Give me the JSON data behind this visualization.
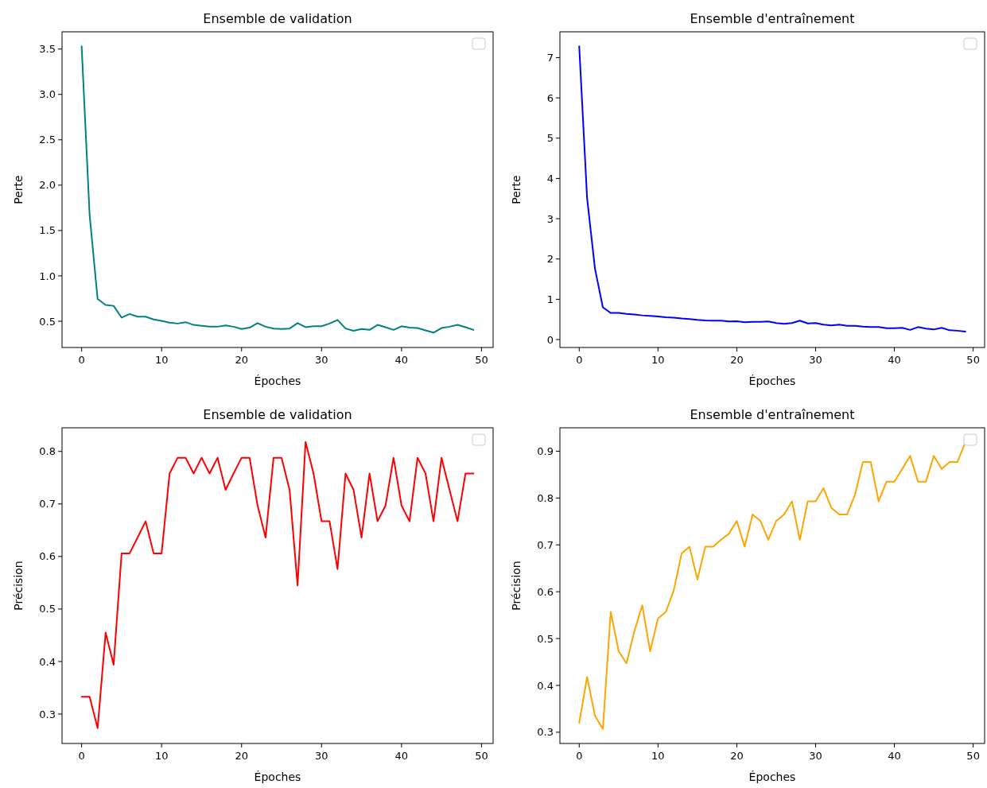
{
  "chart_data": [
    {
      "type": "line",
      "title": "Ensemble de validation",
      "xlabel": "Époches",
      "ylabel": "Perte",
      "xlim": [
        -2.45,
        51.45
      ],
      "xticks": [
        0,
        10,
        20,
        30,
        40,
        50
      ],
      "ylim": [
        0.211,
        3.69
      ],
      "yticks": [
        0.5,
        {
          "value": 1,
          "label": "1.0"
        },
        1.5,
        {
          "value": 2,
          "label": "2.0"
        },
        2.5,
        {
          "value": 3,
          "label": "3.0"
        },
        3.5
      ],
      "series": [
        {
          "color": "#008080",
          "x": [
            0,
            1,
            2,
            3,
            4,
            5,
            6,
            7,
            8,
            9,
            10,
            11,
            12,
            13,
            14,
            15,
            16,
            17,
            18,
            19,
            20,
            21,
            22,
            23,
            24,
            25,
            26,
            27,
            28,
            29,
            30,
            31,
            32,
            33,
            34,
            35,
            36,
            37,
            38,
            39,
            40,
            41,
            42,
            43,
            44,
            45,
            46,
            47,
            48,
            49
          ],
          "values": [
            3.53,
            1.67,
            0.745,
            0.68,
            0.67,
            0.54,
            0.58,
            0.55,
            0.55,
            0.52,
            0.505,
            0.485,
            0.475,
            0.49,
            0.46,
            0.45,
            0.44,
            0.44,
            0.455,
            0.44,
            0.415,
            0.43,
            0.48,
            0.44,
            0.42,
            0.415,
            0.42,
            0.48,
            0.435,
            0.445,
            0.445,
            0.475,
            0.515,
            0.42,
            0.395,
            0.415,
            0.405,
            0.46,
            0.435,
            0.405,
            0.445,
            0.43,
            0.425,
            0.4,
            0.375,
            0.425,
            0.44,
            0.46,
            0.435,
            0.405
          ]
        }
      ]
    },
    {
      "type": "line",
      "title": "Ensemble d'entraînement",
      "xlabel": "Époches",
      "ylabel": "Perte",
      "xlim": [
        -2.45,
        51.45
      ],
      "xticks": [
        0,
        10,
        20,
        30,
        40,
        50
      ],
      "ylim": [
        -0.197,
        7.64
      ],
      "yticks": [
        0,
        1,
        2,
        3,
        4,
        5,
        6,
        7
      ],
      "series": [
        {
          "color": "#0000ff",
          "x": [
            0,
            1,
            2,
            3,
            4,
            5,
            6,
            7,
            8,
            9,
            10,
            11,
            12,
            13,
            14,
            15,
            16,
            17,
            18,
            19,
            20,
            21,
            22,
            23,
            24,
            25,
            26,
            27,
            28,
            29,
            30,
            31,
            32,
            33,
            34,
            35,
            36,
            37,
            38,
            39,
            40,
            41,
            42,
            43,
            44,
            45,
            46,
            47,
            48,
            49
          ],
          "values": [
            7.28,
            3.51,
            1.76,
            0.8,
            0.66,
            0.66,
            0.635,
            0.62,
            0.6,
            0.59,
            0.575,
            0.555,
            0.545,
            0.525,
            0.51,
            0.49,
            0.475,
            0.47,
            0.47,
            0.45,
            0.455,
            0.43,
            0.44,
            0.44,
            0.45,
            0.41,
            0.39,
            0.41,
            0.47,
            0.4,
            0.41,
            0.37,
            0.35,
            0.37,
            0.34,
            0.34,
            0.32,
            0.31,
            0.31,
            0.28,
            0.28,
            0.29,
            0.24,
            0.31,
            0.27,
            0.25,
            0.29,
            0.23,
            0.22,
            0.2
          ]
        }
      ]
    },
    {
      "type": "line",
      "title": "Ensemble de validation",
      "xlabel": "Époches",
      "ylabel": "Précision",
      "xlim": [
        -2.45,
        51.45
      ],
      "xticks": [
        0,
        10,
        20,
        30,
        40,
        50
      ],
      "ylim": [
        0.244,
        0.845
      ],
      "yticks": [
        0.3,
        0.4,
        0.5,
        0.6,
        0.7,
        0.8
      ],
      "series": [
        {
          "color": "#ff0000",
          "x": [
            0,
            1,
            2,
            3,
            4,
            5,
            6,
            7,
            8,
            9,
            10,
            11,
            12,
            13,
            14,
            15,
            16,
            17,
            18,
            19,
            20,
            21,
            22,
            23,
            24,
            25,
            26,
            27,
            28,
            29,
            30,
            31,
            32,
            33,
            34,
            35,
            36,
            37,
            38,
            39,
            40,
            41,
            42,
            43,
            44,
            45,
            46,
            47,
            48,
            49
          ],
          "values": [
            0.333,
            0.333,
            0.273,
            0.455,
            0.394,
            0.606,
            0.606,
            0.636,
            0.667,
            0.606,
            0.606,
            0.758,
            0.788,
            0.788,
            0.758,
            0.788,
            0.758,
            0.788,
            0.727,
            0.758,
            0.788,
            0.788,
            0.697,
            0.636,
            0.788,
            0.788,
            0.727,
            0.545,
            0.818,
            0.758,
            0.667,
            0.667,
            0.576,
            0.758,
            0.727,
            0.636,
            0.758,
            0.667,
            0.697,
            0.788,
            0.697,
            0.667,
            0.788,
            0.758,
            0.667,
            0.788,
            0.727,
            0.667,
            0.758,
            0.758
          ]
        }
      ]
    },
    {
      "type": "line",
      "title": "Ensemble d'entraînement",
      "xlabel": "Époches",
      "ylabel": "Précision",
      "xlim": [
        -2.45,
        51.45
      ],
      "xticks": [
        0,
        10,
        20,
        30,
        40,
        50
      ],
      "ylim": [
        0.276,
        0.95
      ],
      "yticks": [
        0.3,
        0.4,
        0.5,
        0.6,
        0.7,
        0.8,
        0.9
      ],
      "series": [
        {
          "color": "#ffa500",
          "x": [
            0,
            1,
            2,
            3,
            4,
            5,
            6,
            7,
            8,
            9,
            10,
            11,
            12,
            13,
            14,
            15,
            16,
            17,
            18,
            19,
            20,
            21,
            22,
            23,
            24,
            25,
            26,
            27,
            28,
            29,
            30,
            31,
            32,
            33,
            34,
            35,
            36,
            37,
            38,
            39,
            40,
            41,
            42,
            43,
            44,
            45,
            46,
            47,
            48,
            49
          ],
          "values": [
            0.32,
            0.418,
            0.335,
            0.307,
            0.557,
            0.473,
            0.447,
            0.516,
            0.571,
            0.473,
            0.543,
            0.557,
            0.603,
            0.682,
            0.696,
            0.626,
            0.696,
            0.696,
            0.711,
            0.724,
            0.751,
            0.696,
            0.765,
            0.751,
            0.711,
            0.751,
            0.765,
            0.793,
            0.711,
            0.793,
            0.793,
            0.821,
            0.779,
            0.765,
            0.765,
            0.807,
            0.877,
            0.877,
            0.793,
            0.835,
            0.835,
            0.862,
            0.89,
            0.835,
            0.835,
            0.89,
            0.862,
            0.877,
            0.877,
            0.919
          ]
        }
      ]
    }
  ]
}
